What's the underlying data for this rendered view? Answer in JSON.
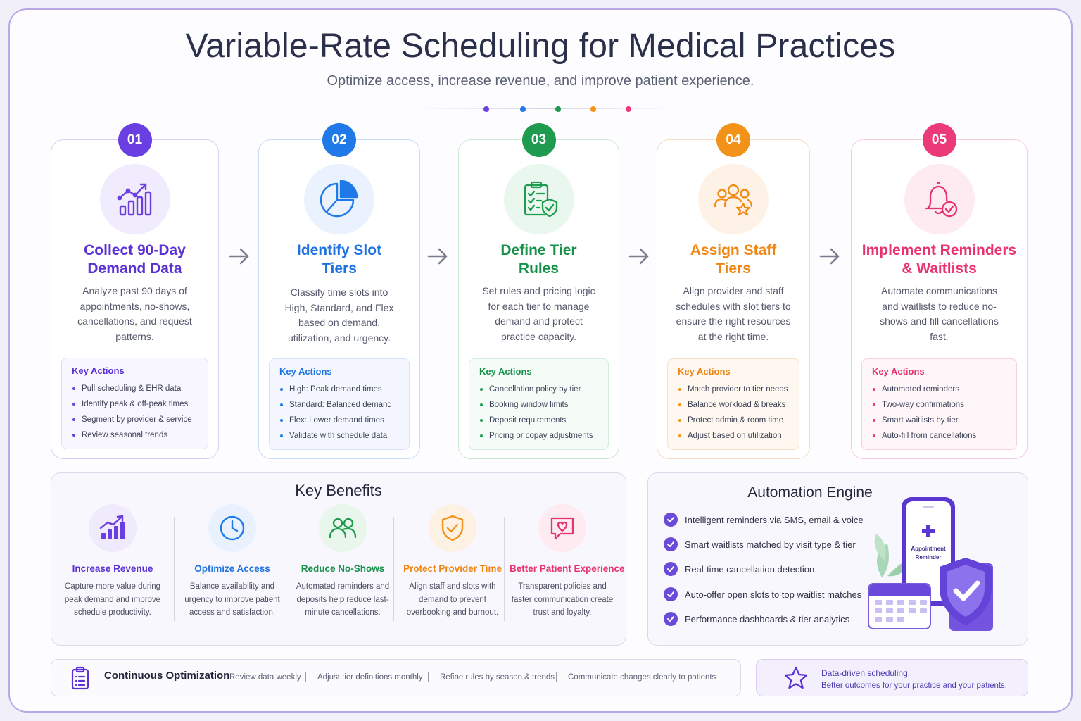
{
  "header": {
    "title": "Variable-Rate Scheduling for Medical Practices",
    "subtitle": "Optimize access, increase revenue, and improve patient experience."
  },
  "colors": {
    "purple": "#6a3ee0",
    "blue": "#1f7ae8",
    "green": "#1e9b4f",
    "orange": "#f39219",
    "pink": "#ec3a78"
  },
  "steps": [
    {
      "number": "01",
      "icon": "chart-growth-icon",
      "title_line1": "Collect 90-Day",
      "title_line2": "Demand Data",
      "description": "Analyze past 90 days of appointments, no-shows, cancellations, and request patterns.",
      "actions_title": "Key Actions",
      "actions": [
        "Pull scheduling & EHR data",
        "Identify peak & off-peak times",
        "Segment by provider & service",
        "Review seasonal trends"
      ]
    },
    {
      "number": "02",
      "icon": "pie-chart-icon",
      "title_line1": "Identify Slot",
      "title_line2": "Tiers",
      "description": "Classify time slots into High, Standard, and Flex based on demand, utilization, and urgency.",
      "actions_title": "Key Actions",
      "actions": [
        "High: Peak demand times",
        "Standard: Balanced demand",
        "Flex: Lower demand times",
        "Validate with schedule data"
      ]
    },
    {
      "number": "03",
      "icon": "checklist-shield-icon",
      "title_line1": "Define Tier",
      "title_line2": "Rules",
      "description": "Set rules and pricing logic for each tier to manage demand and protect practice capacity.",
      "actions_title": "Key Actions",
      "actions": [
        "Cancellation policy by tier",
        "Booking window limits",
        "Deposit requirements",
        "Pricing or copay adjustments"
      ]
    },
    {
      "number": "04",
      "icon": "staff-group-icon",
      "title_line1": "Assign Staff",
      "title_line2": "Tiers",
      "description": "Align provider and staff schedules with slot tiers to ensure the right resources at the right time.",
      "actions_title": "Key Actions",
      "actions": [
        "Match provider to tier needs",
        "Balance workload & breaks",
        "Protect admin & room time",
        "Adjust based on utilization"
      ]
    },
    {
      "number": "05",
      "icon": "bell-check-icon",
      "title_line1": "Implement Reminders",
      "title_line2": "& Waitlists",
      "description": "Automate communications and waitlists to reduce no-shows and fill cancellations fast.",
      "actions_title": "Key Actions",
      "actions": [
        "Automated reminders",
        "Two-way confirmations",
        "Smart waitlists by tier",
        "Auto-fill from cancellations"
      ]
    }
  ],
  "benefits": {
    "title": "Key Benefits",
    "items": [
      {
        "name": "Increase Revenue",
        "icon": "revenue-chart-icon",
        "description": "Capture more value during peak demand and improve schedule productivity."
      },
      {
        "name": "Optimize Access",
        "icon": "clock-icon",
        "description": "Balance availability and urgency to improve patient access and satisfaction."
      },
      {
        "name": "Reduce No-Shows",
        "icon": "people-icon",
        "description": "Automated reminders and deposits help reduce last-minute cancellations."
      },
      {
        "name": "Protect Provider Time",
        "icon": "shield-check-icon",
        "description": "Align staff and slots with demand to prevent overbooking and burnout."
      },
      {
        "name": "Better Patient Experience",
        "icon": "chat-heart-icon",
        "description": "Transparent policies and faster communication create trust and loyalty."
      }
    ]
  },
  "automation": {
    "title": "Automation Engine",
    "items": [
      "Intelligent reminders via SMS, email & voice",
      "Smart waitlists matched by visit type & tier",
      "Real-time cancellation detection",
      "Auto-offer open slots to top waitlist matches",
      "Performance dashboards & tier analytics"
    ],
    "phone_line1": "Appointment",
    "phone_line2": "Reminder"
  },
  "continuous": {
    "title": "Continuous Optimization",
    "items": [
      "Review data weekly",
      "Adjust tier definitions monthly",
      "Refine rules by season & trends",
      "Communicate changes clearly to patients"
    ]
  },
  "tagline": {
    "line1": "Data-driven scheduling.",
    "line2": "Better outcomes for your practice and your patients."
  }
}
